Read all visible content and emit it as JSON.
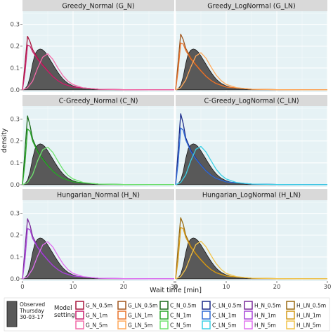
{
  "chart_data": {
    "type": "area",
    "xlabel": "Wait time [min]",
    "ylabel": "density",
    "xlim": [
      0,
      30
    ],
    "ylim": [
      -0.01,
      0.36
    ],
    "x_ticks": [
      0,
      10,
      20,
      30
    ],
    "y_ticks": [
      0.0,
      0.1,
      0.2,
      0.3
    ],
    "y_tick_labels": [
      "0.0",
      "0.1",
      "0.2",
      "0.3"
    ],
    "grid": true,
    "legend_position": "bottom",
    "observed": {
      "label_lines": [
        "Observed",
        "Thursday",
        "30-03-17"
      ],
      "color": "#595959",
      "x": [
        0,
        0.5,
        1,
        1.5,
        2,
        2.5,
        3,
        3.5,
        4,
        4.5,
        5,
        5.5,
        6,
        6.5,
        7,
        7.5,
        8,
        8.5,
        9,
        10,
        11,
        12,
        13,
        14,
        15,
        17,
        20,
        25,
        30
      ],
      "y": [
        0,
        0.005,
        0.02,
        0.06,
        0.12,
        0.165,
        0.182,
        0.187,
        0.183,
        0.172,
        0.155,
        0.136,
        0.117,
        0.098,
        0.08,
        0.064,
        0.05,
        0.039,
        0.03,
        0.018,
        0.011,
        0.007,
        0.005,
        0.0035,
        0.0025,
        0.0015,
        0.0008,
        0.0003,
        0.0001
      ]
    },
    "legend_title_lines": [
      "Model",
      "setting"
    ],
    "legend_columns": [
      [
        {
          "label": "G_N_0.5m",
          "color": "#a8173e"
        },
        {
          "label": "G_N_1m",
          "color": "#c8216e"
        },
        {
          "label": "G_N_5m",
          "color": "#f26aa8"
        }
      ],
      [
        {
          "label": "G_LN_0.5m",
          "color": "#a0541c"
        },
        {
          "label": "G_LN_1m",
          "color": "#e8732c"
        },
        {
          "label": "G_LN_5m",
          "color": "#ffa95a"
        }
      ],
      [
        {
          "label": "C_N_0.5m",
          "color": "#1a6b1a"
        },
        {
          "label": "C_N_1m",
          "color": "#2aa82a"
        },
        {
          "label": "C_N_5m",
          "color": "#6fe36f"
        }
      ],
      [
        {
          "label": "C_LN_0.5m",
          "color": "#1a2a8a"
        },
        {
          "label": "C_LN_1m",
          "color": "#2f6bd6"
        },
        {
          "label": "C_LN_5m",
          "color": "#3cd0e6"
        }
      ],
      [
        {
          "label": "H_N_0.5m",
          "color": "#7a2a9a"
        },
        {
          "label": "H_N_1m",
          "color": "#a845d8"
        },
        {
          "label": "H_N_5m",
          "color": "#e070f0"
        }
      ],
      [
        {
          "label": "H_LN_0.5m",
          "color": "#9a6a10"
        },
        {
          "label": "H_LN_1m",
          "color": "#d49a18"
        },
        {
          "label": "H_LN_5m",
          "color": "#f2c34a"
        }
      ]
    ],
    "panels": [
      {
        "title": "Greedy_Normal (G_N)",
        "series": [
          {
            "name": "G_N_0.5m",
            "color": "#a8173e",
            "x": [
              0,
              0.5,
              1,
              1.5,
              2,
              3,
              4,
              5,
              6,
              7,
              8,
              10,
              15,
              20,
              25,
              30
            ],
            "y": [
              0,
              0.12,
              0.245,
              0.22,
              0.185,
              0.145,
              0.115,
              0.088,
              0.062,
              0.042,
              0.028,
              0.013,
              0.003,
              0.001,
              0.0005,
              0.0002
            ]
          },
          {
            "name": "G_N_1m",
            "color": "#c8216e",
            "x": [
              0,
              0.5,
              1,
              1.5,
              2,
              3,
              4,
              5,
              6,
              7,
              8,
              10,
              15,
              20,
              25,
              30
            ],
            "y": [
              0,
              0.08,
              0.205,
              0.2,
              0.175,
              0.14,
              0.112,
              0.086,
              0.061,
              0.042,
              0.028,
              0.013,
              0.003,
              0.001,
              0.0005,
              0.0002
            ]
          },
          {
            "name": "G_N_5m",
            "color": "#f26aa8",
            "x": [
              0,
              1,
              2,
              3,
              4,
              5,
              6,
              7,
              8,
              9,
              10,
              12,
              15,
              20,
              25,
              30
            ],
            "y": [
              0,
              0.01,
              0.04,
              0.1,
              0.15,
              0.165,
              0.14,
              0.1,
              0.065,
              0.04,
              0.024,
              0.009,
              0.003,
              0.001,
              0.0004,
              0.0002
            ]
          }
        ]
      },
      {
        "title": "Greedy_LogNormal (G_LN)",
        "series": [
          {
            "name": "G_LN_0.5m",
            "color": "#a0541c",
            "x": [
              0,
              0.5,
              1,
              1.5,
              2,
              3,
              4,
              5,
              6,
              7,
              8,
              10,
              15,
              20,
              25,
              30
            ],
            "y": [
              0,
              0.13,
              0.255,
              0.23,
              0.19,
              0.148,
              0.117,
              0.089,
              0.063,
              0.043,
              0.029,
              0.013,
              0.003,
              0.001,
              0.0005,
              0.0002
            ]
          },
          {
            "name": "G_LN_1m",
            "color": "#e8732c",
            "x": [
              0,
              0.5,
              1,
              1.5,
              2,
              3,
              4,
              5,
              6,
              7,
              8,
              10,
              15,
              20,
              25,
              30
            ],
            "y": [
              0,
              0.09,
              0.215,
              0.21,
              0.18,
              0.142,
              0.114,
              0.087,
              0.062,
              0.043,
              0.029,
              0.013,
              0.003,
              0.001,
              0.0005,
              0.0002
            ]
          },
          {
            "name": "G_LN_5m",
            "color": "#ffa95a",
            "x": [
              0,
              1,
              2,
              3,
              4,
              5,
              6,
              7,
              8,
              9,
              10,
              12,
              15,
              20,
              25,
              30
            ],
            "y": [
              0,
              0.01,
              0.045,
              0.105,
              0.155,
              0.17,
              0.145,
              0.105,
              0.068,
              0.042,
              0.025,
              0.01,
              0.003,
              0.001,
              0.0004,
              0.0002
            ]
          }
        ]
      },
      {
        "title": "C-Greedy_Normal (C_N)",
        "series": [
          {
            "name": "C_N_0.5m",
            "color": "#1a6b1a",
            "x": [
              0,
              0.5,
              1,
              1.5,
              2,
              3,
              4,
              5,
              6,
              7,
              8,
              10,
              15,
              20,
              25,
              30
            ],
            "y": [
              0,
              0.16,
              0.315,
              0.27,
              0.21,
              0.155,
              0.12,
              0.09,
              0.063,
              0.043,
              0.029,
              0.013,
              0.003,
              0.001,
              0.0005,
              0.0002
            ]
          },
          {
            "name": "C_N_1m",
            "color": "#2aa82a",
            "x": [
              0,
              0.5,
              1,
              1.5,
              2,
              3,
              4,
              5,
              6,
              7,
              8,
              10,
              15,
              20,
              25,
              30
            ],
            "y": [
              0,
              0.1,
              0.255,
              0.245,
              0.2,
              0.15,
              0.117,
              0.088,
              0.062,
              0.043,
              0.029,
              0.013,
              0.003,
              0.001,
              0.0005,
              0.0002
            ]
          },
          {
            "name": "C_N_5m",
            "color": "#6fe36f",
            "x": [
              0,
              1,
              2,
              3,
              4,
              5,
              6,
              7,
              8,
              9,
              10,
              12,
              15,
              20,
              25,
              30
            ],
            "y": [
              0,
              0.01,
              0.045,
              0.11,
              0.16,
              0.172,
              0.148,
              0.108,
              0.07,
              0.043,
              0.026,
              0.01,
              0.003,
              0.001,
              0.0004,
              0.0002
            ]
          }
        ]
      },
      {
        "title": "C-Greedy_LogNormal (C_LN)",
        "series": [
          {
            "name": "C_LN_0.5m",
            "color": "#1a2a8a",
            "x": [
              0,
              0.5,
              1,
              1.5,
              2,
              3,
              4,
              5,
              6,
              7,
              8,
              10,
              15,
              20,
              25,
              30
            ],
            "y": [
              0,
              0.16,
              0.325,
              0.28,
              0.215,
              0.158,
              0.121,
              0.091,
              0.064,
              0.044,
              0.029,
              0.013,
              0.003,
              0.001,
              0.0005,
              0.0002
            ]
          },
          {
            "name": "C_LN_1m",
            "color": "#2f6bd6",
            "x": [
              0,
              0.5,
              1,
              1.5,
              2,
              3,
              4,
              5,
              6,
              7,
              8,
              10,
              15,
              20,
              25,
              30
            ],
            "y": [
              0,
              0.1,
              0.26,
              0.25,
              0.205,
              0.152,
              0.118,
              0.089,
              0.063,
              0.043,
              0.029,
              0.013,
              0.003,
              0.001,
              0.0005,
              0.0002
            ]
          },
          {
            "name": "C_LN_5m",
            "color": "#3cd0e6",
            "x": [
              0,
              1,
              2,
              3,
              4,
              5,
              6,
              7,
              8,
              9,
              10,
              12,
              15,
              20,
              25,
              30
            ],
            "y": [
              0,
              0.01,
              0.045,
              0.11,
              0.162,
              0.175,
              0.15,
              0.11,
              0.071,
              0.044,
              0.026,
              0.01,
              0.003,
              0.001,
              0.0004,
              0.0002
            ]
          }
        ]
      },
      {
        "title": "Hungarian_Normal (H_N)",
        "series": [
          {
            "name": "H_N_0.5m",
            "color": "#7a2a9a",
            "x": [
              0,
              0.5,
              1,
              1.5,
              2,
              3,
              4,
              5,
              6,
              7,
              8,
              10,
              15,
              20,
              25,
              30
            ],
            "y": [
              0,
              0.14,
              0.275,
              0.245,
              0.195,
              0.148,
              0.116,
              0.088,
              0.062,
              0.043,
              0.028,
              0.013,
              0.003,
              0.001,
              0.0005,
              0.0002
            ]
          },
          {
            "name": "H_N_1m",
            "color": "#a845d8",
            "x": [
              0,
              0.5,
              1,
              1.5,
              2,
              3,
              4,
              5,
              6,
              7,
              8,
              10,
              15,
              20,
              25,
              30
            ],
            "y": [
              0,
              0.09,
              0.23,
              0.225,
              0.185,
              0.143,
              0.113,
              0.086,
              0.061,
              0.042,
              0.028,
              0.013,
              0.003,
              0.001,
              0.0005,
              0.0002
            ]
          },
          {
            "name": "H_N_5m",
            "color": "#e070f0",
            "x": [
              0,
              1,
              2,
              3,
              4,
              5,
              6,
              7,
              8,
              9,
              10,
              12,
              15,
              20,
              25,
              30
            ],
            "y": [
              0,
              0.01,
              0.045,
              0.105,
              0.155,
              0.17,
              0.146,
              0.106,
              0.069,
              0.042,
              0.025,
              0.01,
              0.003,
              0.001,
              0.0004,
              0.0002
            ]
          }
        ]
      },
      {
        "title": "Hungarian_LogNormal (H_LN)",
        "series": [
          {
            "name": "H_LN_0.5m",
            "color": "#9a6a10",
            "x": [
              0,
              0.5,
              1,
              1.5,
              2,
              3,
              4,
              5,
              6,
              7,
              8,
              10,
              15,
              20,
              25,
              30
            ],
            "y": [
              0,
              0.15,
              0.28,
              0.25,
              0.2,
              0.15,
              0.117,
              0.089,
              0.063,
              0.043,
              0.028,
              0.013,
              0.003,
              0.001,
              0.0005,
              0.0002
            ]
          },
          {
            "name": "H_LN_1m",
            "color": "#d49a18",
            "x": [
              0,
              0.5,
              1,
              1.5,
              2,
              3,
              4,
              5,
              6,
              7,
              8,
              10,
              15,
              20,
              25,
              30
            ],
            "y": [
              0,
              0.09,
              0.235,
              0.23,
              0.19,
              0.145,
              0.114,
              0.087,
              0.062,
              0.042,
              0.028,
              0.013,
              0.003,
              0.001,
              0.0005,
              0.0002
            ]
          },
          {
            "name": "H_LN_5m",
            "color": "#f2c34a",
            "x": [
              0,
              1,
              2,
              3,
              4,
              5,
              6,
              7,
              8,
              9,
              10,
              12,
              15,
              20,
              25,
              30
            ],
            "y": [
              0,
              0.01,
              0.045,
              0.105,
              0.157,
              0.172,
              0.147,
              0.107,
              0.07,
              0.043,
              0.025,
              0.01,
              0.003,
              0.001,
              0.0004,
              0.0002
            ]
          }
        ]
      }
    ]
  }
}
